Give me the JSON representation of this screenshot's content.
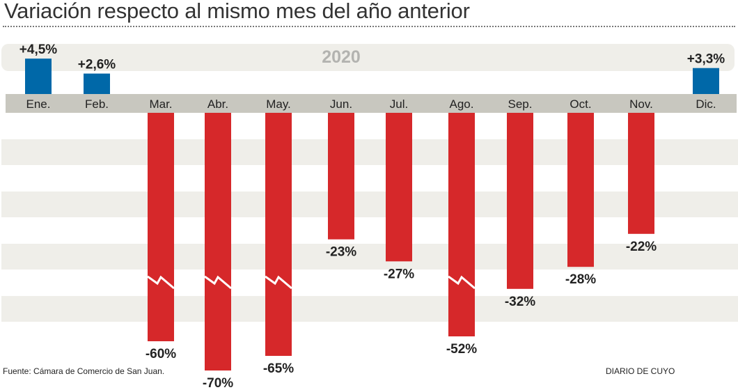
{
  "chart_data": {
    "type": "bar",
    "title": "Variación respecto al mismo mes del año anterior",
    "year_label": "2020",
    "categories": [
      "Ene.",
      "Feb.",
      "Mar.",
      "Abr.",
      "May.",
      "Jun.",
      "Jul.",
      "Ago.",
      "Sep.",
      "Oct.",
      "Nov.",
      "Dic."
    ],
    "values": [
      4.5,
      2.6,
      -60,
      -70,
      -65,
      -23,
      -27,
      -52,
      -32,
      -28,
      -22,
      3.3
    ],
    "data_labels": [
      "+4,5%",
      "+2,6%",
      "-60%",
      "-70%",
      "-65%",
      "-23%",
      "-27%",
      "-52%",
      "-32%",
      "-28%",
      "-22%",
      "+3,3%"
    ],
    "broken_axis": [
      false,
      false,
      true,
      true,
      true,
      false,
      false,
      true,
      false,
      false,
      false,
      false
    ],
    "colors": {
      "positive": "#0068a8",
      "negative": "#d6282a",
      "axis": "#c8c7bf",
      "stripe": "#efeee9",
      "year": "#b3b3b0"
    },
    "xlabel": "",
    "ylabel": ""
  },
  "footer": {
    "source": "Fuente: Cámara de Comercio de San Juan.",
    "credit": "DIARIO DE CUYO"
  }
}
